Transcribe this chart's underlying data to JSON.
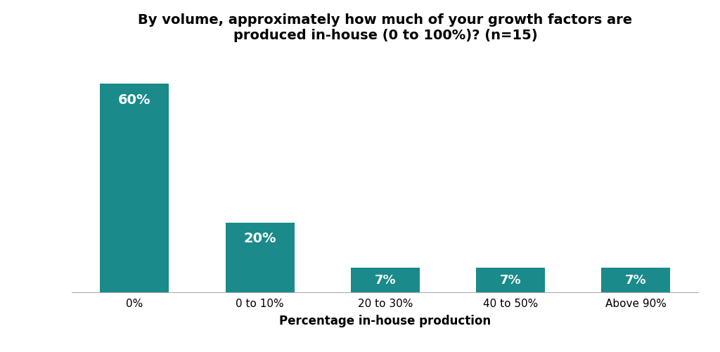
{
  "categories": [
    "0%",
    "0 to 10%",
    "20 to 30%",
    "40 to 50%",
    "Above 90%"
  ],
  "values": [
    60,
    20,
    7,
    7,
    7
  ],
  "bar_labels": [
    "60%",
    "20%",
    "7%",
    "7%",
    "7%"
  ],
  "bar_color": "#1a8a8a",
  "title_line1": "By volume, approximately how much of your growth factors are",
  "title_line2": "produced in-house (0 to 100%)? (n=15)",
  "xlabel": "Percentage in-house production",
  "ylim": [
    0,
    70
  ],
  "background_color": "#ffffff",
  "title_fontsize": 14,
  "axis_label_fontsize": 12,
  "tick_fontsize": 11,
  "bar_label_fontsize": 14,
  "bar_label_fontsize_small": 13
}
